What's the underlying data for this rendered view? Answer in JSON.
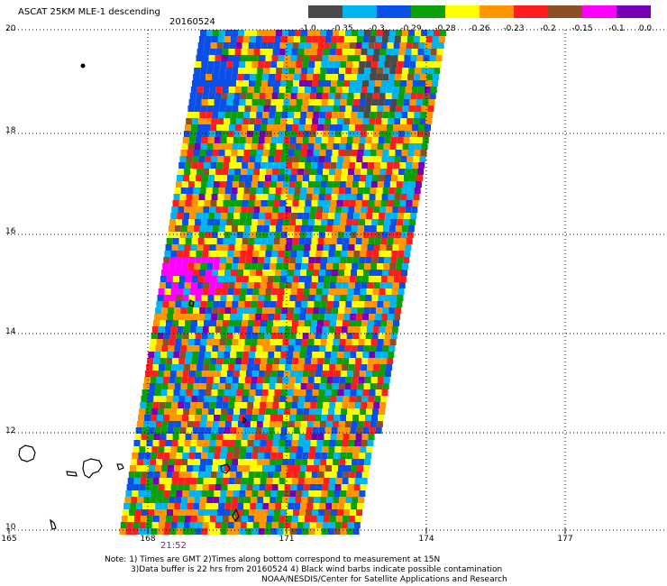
{
  "header": {
    "title": "ASCAT 25KM MLE-1 descending",
    "date": "20160524"
  },
  "legend": {
    "colors": [
      "#4a4a4a",
      "#00b4f0",
      "#0a50e6",
      "#0aa00a",
      "#ffff00",
      "#ff9600",
      "#ff1e1e",
      "#8c5028",
      "#ff00ff",
      "#7800b4"
    ],
    "ticks": [
      "-1.0",
      "-0.35",
      "-0.3",
      "-0.29",
      "-0.28",
      "-0.26",
      "-0.23",
      "-0.2",
      "-0.15",
      "-0.1",
      "0.0"
    ]
  },
  "map": {
    "y_axis": {
      "range": [
        10,
        20
      ],
      "labels": [
        "20",
        "18",
        "16",
        "14",
        "12",
        "10"
      ]
    },
    "x_axis": {
      "range": [
        165,
        180
      ],
      "labels": [
        "165",
        "168",
        "171",
        "174",
        "177"
      ]
    },
    "gridlines": "dotted",
    "swath_palette": [
      "#0a50e6",
      "#0aa00a",
      "#ffff00",
      "#ff9600",
      "#ff1e1e",
      "#00b4f0"
    ],
    "time_label": "21:52"
  },
  "notes": {
    "line1": "Note: 1) Times are GMT 2)Times along bottom correspond to measurement at 15N",
    "line2": "3)Data buffer is 22 hrs from 20160524 4) Black wind barbs indicate possible contamination",
    "line3": "NOAA/NESDIS/Center for Satellite Applications and Research"
  }
}
